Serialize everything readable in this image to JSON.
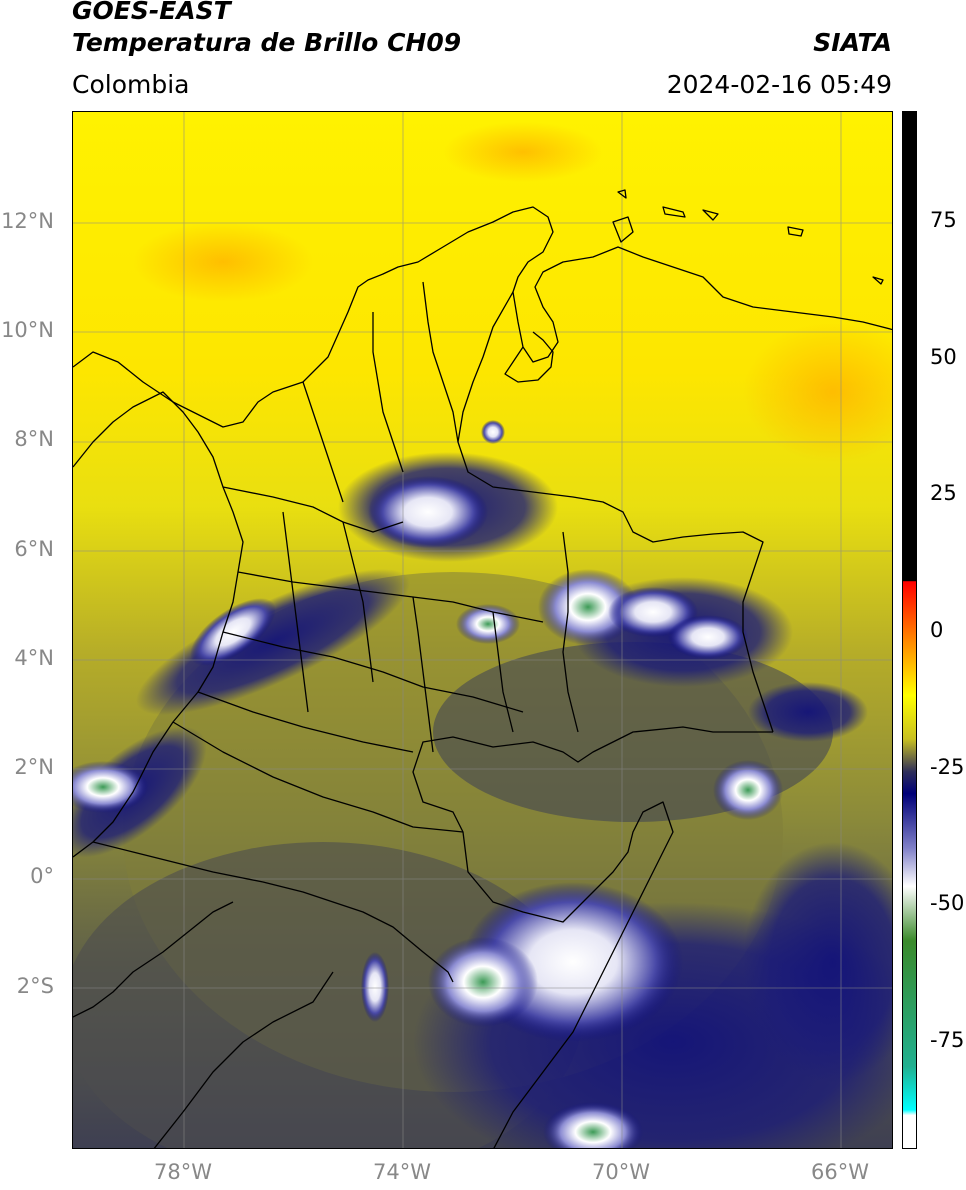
{
  "header": {
    "title_line1": "GOES-EAST",
    "title_line2": "Temperatura de Brillo CH09",
    "brand": "SIATA",
    "region": "Colombia",
    "datetime": "2024-02-16 05:49"
  },
  "map": {
    "lat_labels": [
      "12°N",
      "10°N",
      "8°N",
      "6°N",
      "4°N",
      "2°N",
      "0°",
      "2°S"
    ],
    "lon_labels": [
      "78°W",
      "74°W",
      "70°W",
      "66°W"
    ],
    "grid_color": "#888888",
    "border_color": "#000000"
  },
  "colorbar": {
    "ticks": [
      "75",
      "50",
      "25",
      "0",
      "-25",
      "-50",
      "-75"
    ],
    "tick_values": [
      75,
      50,
      25,
      0,
      -25,
      -50,
      -75
    ],
    "range": [
      -95,
      95
    ],
    "stops": [
      {
        "v": 95,
        "c": "#000000"
      },
      {
        "v": 9,
        "c": "#000000"
      },
      {
        "v": 8.9,
        "c": "#ff0000"
      },
      {
        "v": -2,
        "c": "#ff8800"
      },
      {
        "v": -12,
        "c": "#ffff00"
      },
      {
        "v": -20,
        "c": "#c8c020"
      },
      {
        "v": -26,
        "c": "#2e2e5a"
      },
      {
        "v": -30,
        "c": "#000078"
      },
      {
        "v": -40,
        "c": "#8080c8"
      },
      {
        "v": -47,
        "c": "#ffffff"
      },
      {
        "v": -57,
        "c": "#3a8a2a"
      },
      {
        "v": -80,
        "c": "#20b090"
      },
      {
        "v": -88,
        "c": "#00ffff"
      },
      {
        "v": -89,
        "c": "#ffffff"
      },
      {
        "v": -95,
        "c": "#ffffff"
      }
    ]
  }
}
